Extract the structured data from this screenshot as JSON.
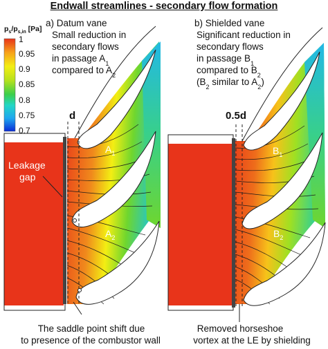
{
  "title": "Endwall streamlines - secondary flow formation",
  "colorbar": {
    "label_main": "p",
    "label_sub1": "s",
    "label_mid": "/p",
    "label_sub2": "s,in",
    "label_unit": " [Pa]",
    "ticks": [
      "1",
      "0.95",
      "0.9",
      "0.85",
      "0.8",
      "0.75",
      "0.7"
    ],
    "range": [
      0.7,
      1.0
    ],
    "colors": [
      "#0a2bd6",
      "#1fa6f0",
      "#22d6c6",
      "#3ccf4a",
      "#b6e11d",
      "#f3ee13",
      "#f7a21a",
      "#e8341a"
    ]
  },
  "panel_a": {
    "heading": "a) Datum vane",
    "line1": "Small reduction in",
    "line2": "secondary flows",
    "line3_pre": "in passage A",
    "line3_sub": "1",
    "line4_pre": "compared to A",
    "line4_sub": "2",
    "dim_label": "d",
    "passage1_pre": "A",
    "passage1_sub": "1",
    "passage2_pre": "A",
    "passage2_sub": "2",
    "leak_line1": "Leakage",
    "leak_line2": "gap",
    "note_line1": "The saddle point shift due",
    "note_line2": "to presence of the combustor wall"
  },
  "panel_b": {
    "heading": "b) Shielded vane",
    "line1": "Significant reduction in",
    "line2": "secondary flows",
    "line3_pre": "in passage B",
    "line3_sub": "1",
    "line4_pre": "compared to B",
    "line4_sub": "2",
    "line5_pre": "(B",
    "line5_sub": "2",
    "line5_mid": " similar to A",
    "line5_sub2": "2",
    "line5_post": ")",
    "dim_label": "0.5d",
    "passage1_pre": "B",
    "passage1_sub": "1",
    "passage2_pre": "B",
    "passage2_sub": "2",
    "note_line1": "Removed horseshoe",
    "note_line2": "vortex at the LE by shielding"
  }
}
